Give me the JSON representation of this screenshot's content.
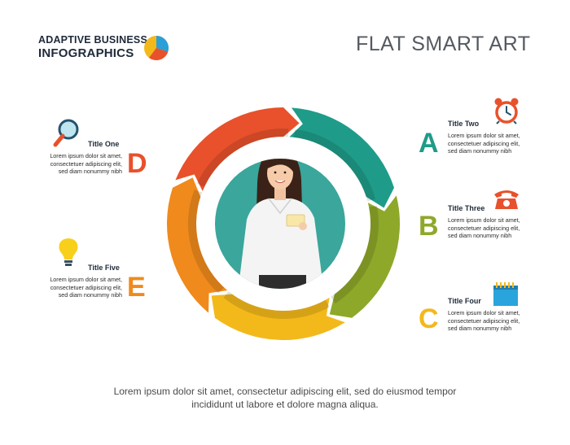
{
  "brand": {
    "line1": "ADAPTIVE BUSINESS",
    "line2": "INFOGRAPHICS"
  },
  "title": "FLAT SMART ART",
  "items": [
    {
      "id": "one",
      "title": "Title One",
      "letter": "D",
      "text": "Lorem ipsum dolor sit amet, consectetuer adipiscing elit, sed diam nonummy nibh",
      "icon": "magnifier-icon",
      "color": "#e8512b"
    },
    {
      "id": "two",
      "title": "Title Two",
      "letter": "A",
      "text": "Lorem ipsum dolor sit amet, consectetuer adipiscing elit, sed diam nonummy nibh",
      "icon": "alarm-clock-icon",
      "color": "#1e9c89"
    },
    {
      "id": "three",
      "title": "Title Three",
      "letter": "B",
      "text": "Lorem ipsum dolor sit amet, consectetuer adipiscing elit, sed diam nonummy nibh",
      "icon": "telephone-icon",
      "color": "#8ea82a"
    },
    {
      "id": "four",
      "title": "Title Four",
      "letter": "C",
      "text": "Lorem ipsum dolor sit amet, consectetuer adipiscing elit, sed diam nonummy nibh",
      "icon": "calendar-icon",
      "color": "#f3b91b"
    },
    {
      "id": "five",
      "title": "Title Five",
      "letter": "E",
      "text": "Lorem ipsum dolor sit amet, consectetuer adipiscing elit, sed diam nonummy nibh",
      "icon": "light-bulb-icon",
      "color": "#f08a1c"
    }
  ],
  "footer": {
    "line1": "Lorem ipsum dolor sit amet, consectetur adipiscing elit, sed do eiusmod tempor",
    "line2": "incididunt ut labore et dolore magna aliqua."
  },
  "colors": {
    "ring_teal": "#1e9c89",
    "ring_olive": "#8ea82a",
    "ring_yellow": "#f3b91b",
    "ring_orange": "#f08a1c",
    "ring_red": "#e8512b",
    "center_circle": "#3aa69c"
  }
}
